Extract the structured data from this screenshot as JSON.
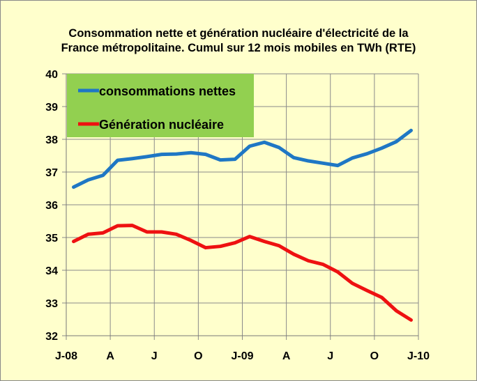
{
  "chart_data": {
    "type": "line",
    "title": "Consommation nette et génération nucléaire d'électricité de la France métropolitaine. Cumul sur 12 mois mobiles en TWh (RTE)",
    "title_lines": [
      "Consommation nette et génération nucléaire d'électricité de la",
      "France métropolitaine. Cumul sur 12 mois mobiles en TWh (RTE)"
    ],
    "xlabel": "",
    "ylabel": "",
    "ylim": [
      32,
      40
    ],
    "yticks": [
      32,
      33,
      34,
      35,
      36,
      37,
      38,
      39,
      40
    ],
    "xtick_labels": [
      "J-08",
      "A",
      "J",
      "O",
      "J-09",
      "A",
      "J",
      "O",
      "J-10"
    ],
    "x_months_range": [
      0,
      24
    ],
    "grid": true,
    "legend_position": "top-left",
    "series": [
      {
        "name": "consommations nettes",
        "color": "#1F77C4",
        "x": [
          0.5,
          1.5,
          2.5,
          3.5,
          4.5,
          5.5,
          6.5,
          7.5,
          8.5,
          9.5,
          10.5,
          11.5,
          12.5,
          13.5,
          14.5,
          15.5,
          16.5,
          17.5,
          18.5,
          19.5,
          20.5,
          21.5,
          22.5,
          23.5
        ],
        "values": [
          36.54,
          36.76,
          36.9,
          37.36,
          37.41,
          37.47,
          37.54,
          37.55,
          37.59,
          37.54,
          37.37,
          37.39,
          37.79,
          37.91,
          37.75,
          37.44,
          37.34,
          37.27,
          37.2,
          37.43,
          37.56,
          37.73,
          37.93,
          38.27
        ]
      },
      {
        "name": "Génération nucléaire",
        "color": "#EE1111",
        "x": [
          0.5,
          1.5,
          2.5,
          3.5,
          4.5,
          5.5,
          6.5,
          7.5,
          8.5,
          9.5,
          10.5,
          11.5,
          12.5,
          13.5,
          14.5,
          15.5,
          16.5,
          17.5,
          18.5,
          19.5,
          20.5,
          21.5,
          22.5,
          23.5
        ],
        "values": [
          34.88,
          35.1,
          35.14,
          35.36,
          35.37,
          35.17,
          35.17,
          35.1,
          34.91,
          34.69,
          34.73,
          34.84,
          35.03,
          34.88,
          34.75,
          34.49,
          34.29,
          34.18,
          33.95,
          33.6,
          33.38,
          33.17,
          32.76,
          32.48
        ]
      }
    ]
  }
}
